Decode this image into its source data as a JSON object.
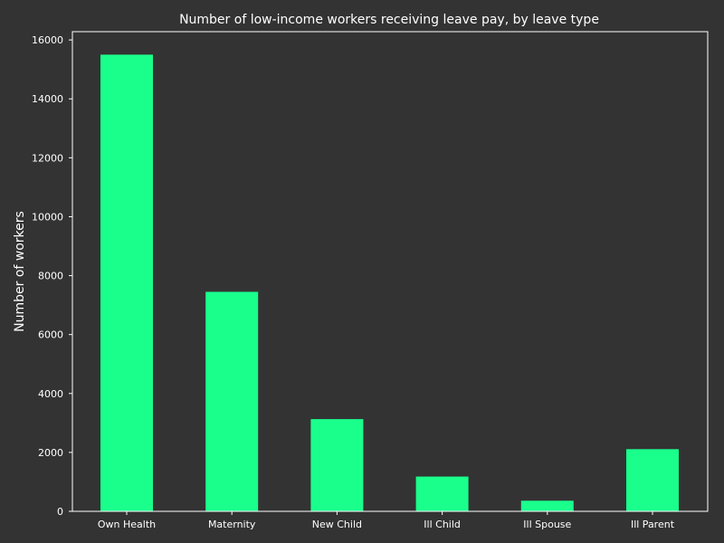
{
  "chart_data": {
    "type": "bar",
    "title": "Number of low-income workers receiving leave pay, by leave type",
    "xlabel": "",
    "ylabel": "Number of workers",
    "categories": [
      "Own Health",
      "Maternity",
      "New Child",
      "Ill Child",
      "Ill Spouse",
      "Ill Parent"
    ],
    "values": [
      15500,
      7450,
      3130,
      1180,
      360,
      2110
    ],
    "ylim": [
      0,
      16280
    ],
    "yticks": [
      0,
      2000,
      4000,
      6000,
      8000,
      10000,
      12000,
      14000,
      16000
    ],
    "grid": false,
    "legend": "none",
    "colors": {
      "background": "#333333",
      "bar": "#1aff8c",
      "axis": "#ffffff",
      "text": "#ffffff"
    }
  }
}
